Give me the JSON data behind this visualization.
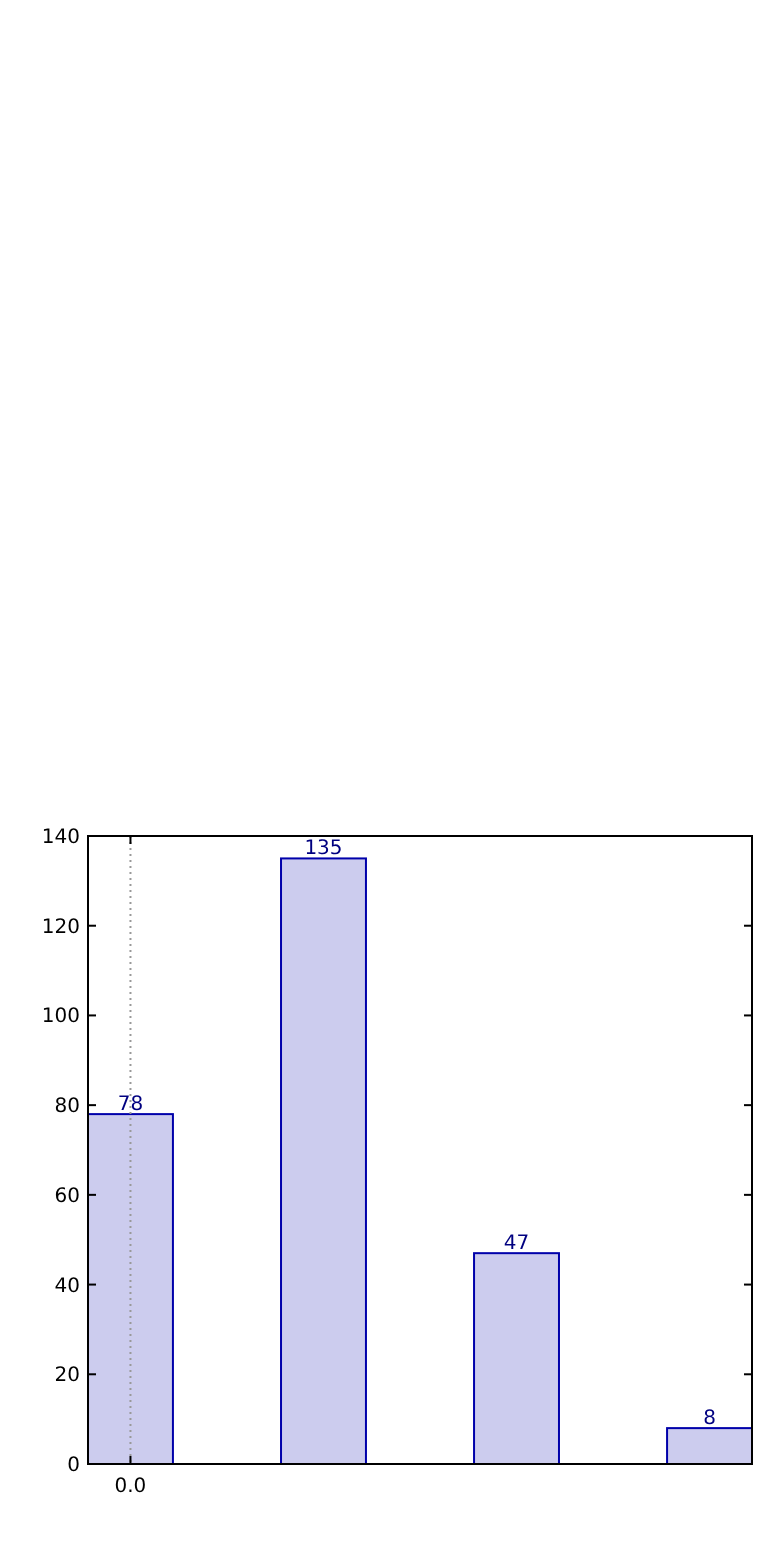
{
  "chart_data": {
    "type": "bar",
    "categories": [
      "0.0",
      null,
      null,
      null
    ],
    "values": [
      78,
      135,
      47,
      8
    ],
    "color": "#ccccee",
    "ylim": [
      0,
      140
    ],
    "yticks": [
      0,
      20,
      40,
      60,
      80,
      100,
      120,
      140
    ],
    "ref_lines": [
      {
        "axis": "x",
        "value": "0.0",
        "color": "#999999",
        "line_style": "dotted"
      }
    ],
    "data_labels": true
  }
}
